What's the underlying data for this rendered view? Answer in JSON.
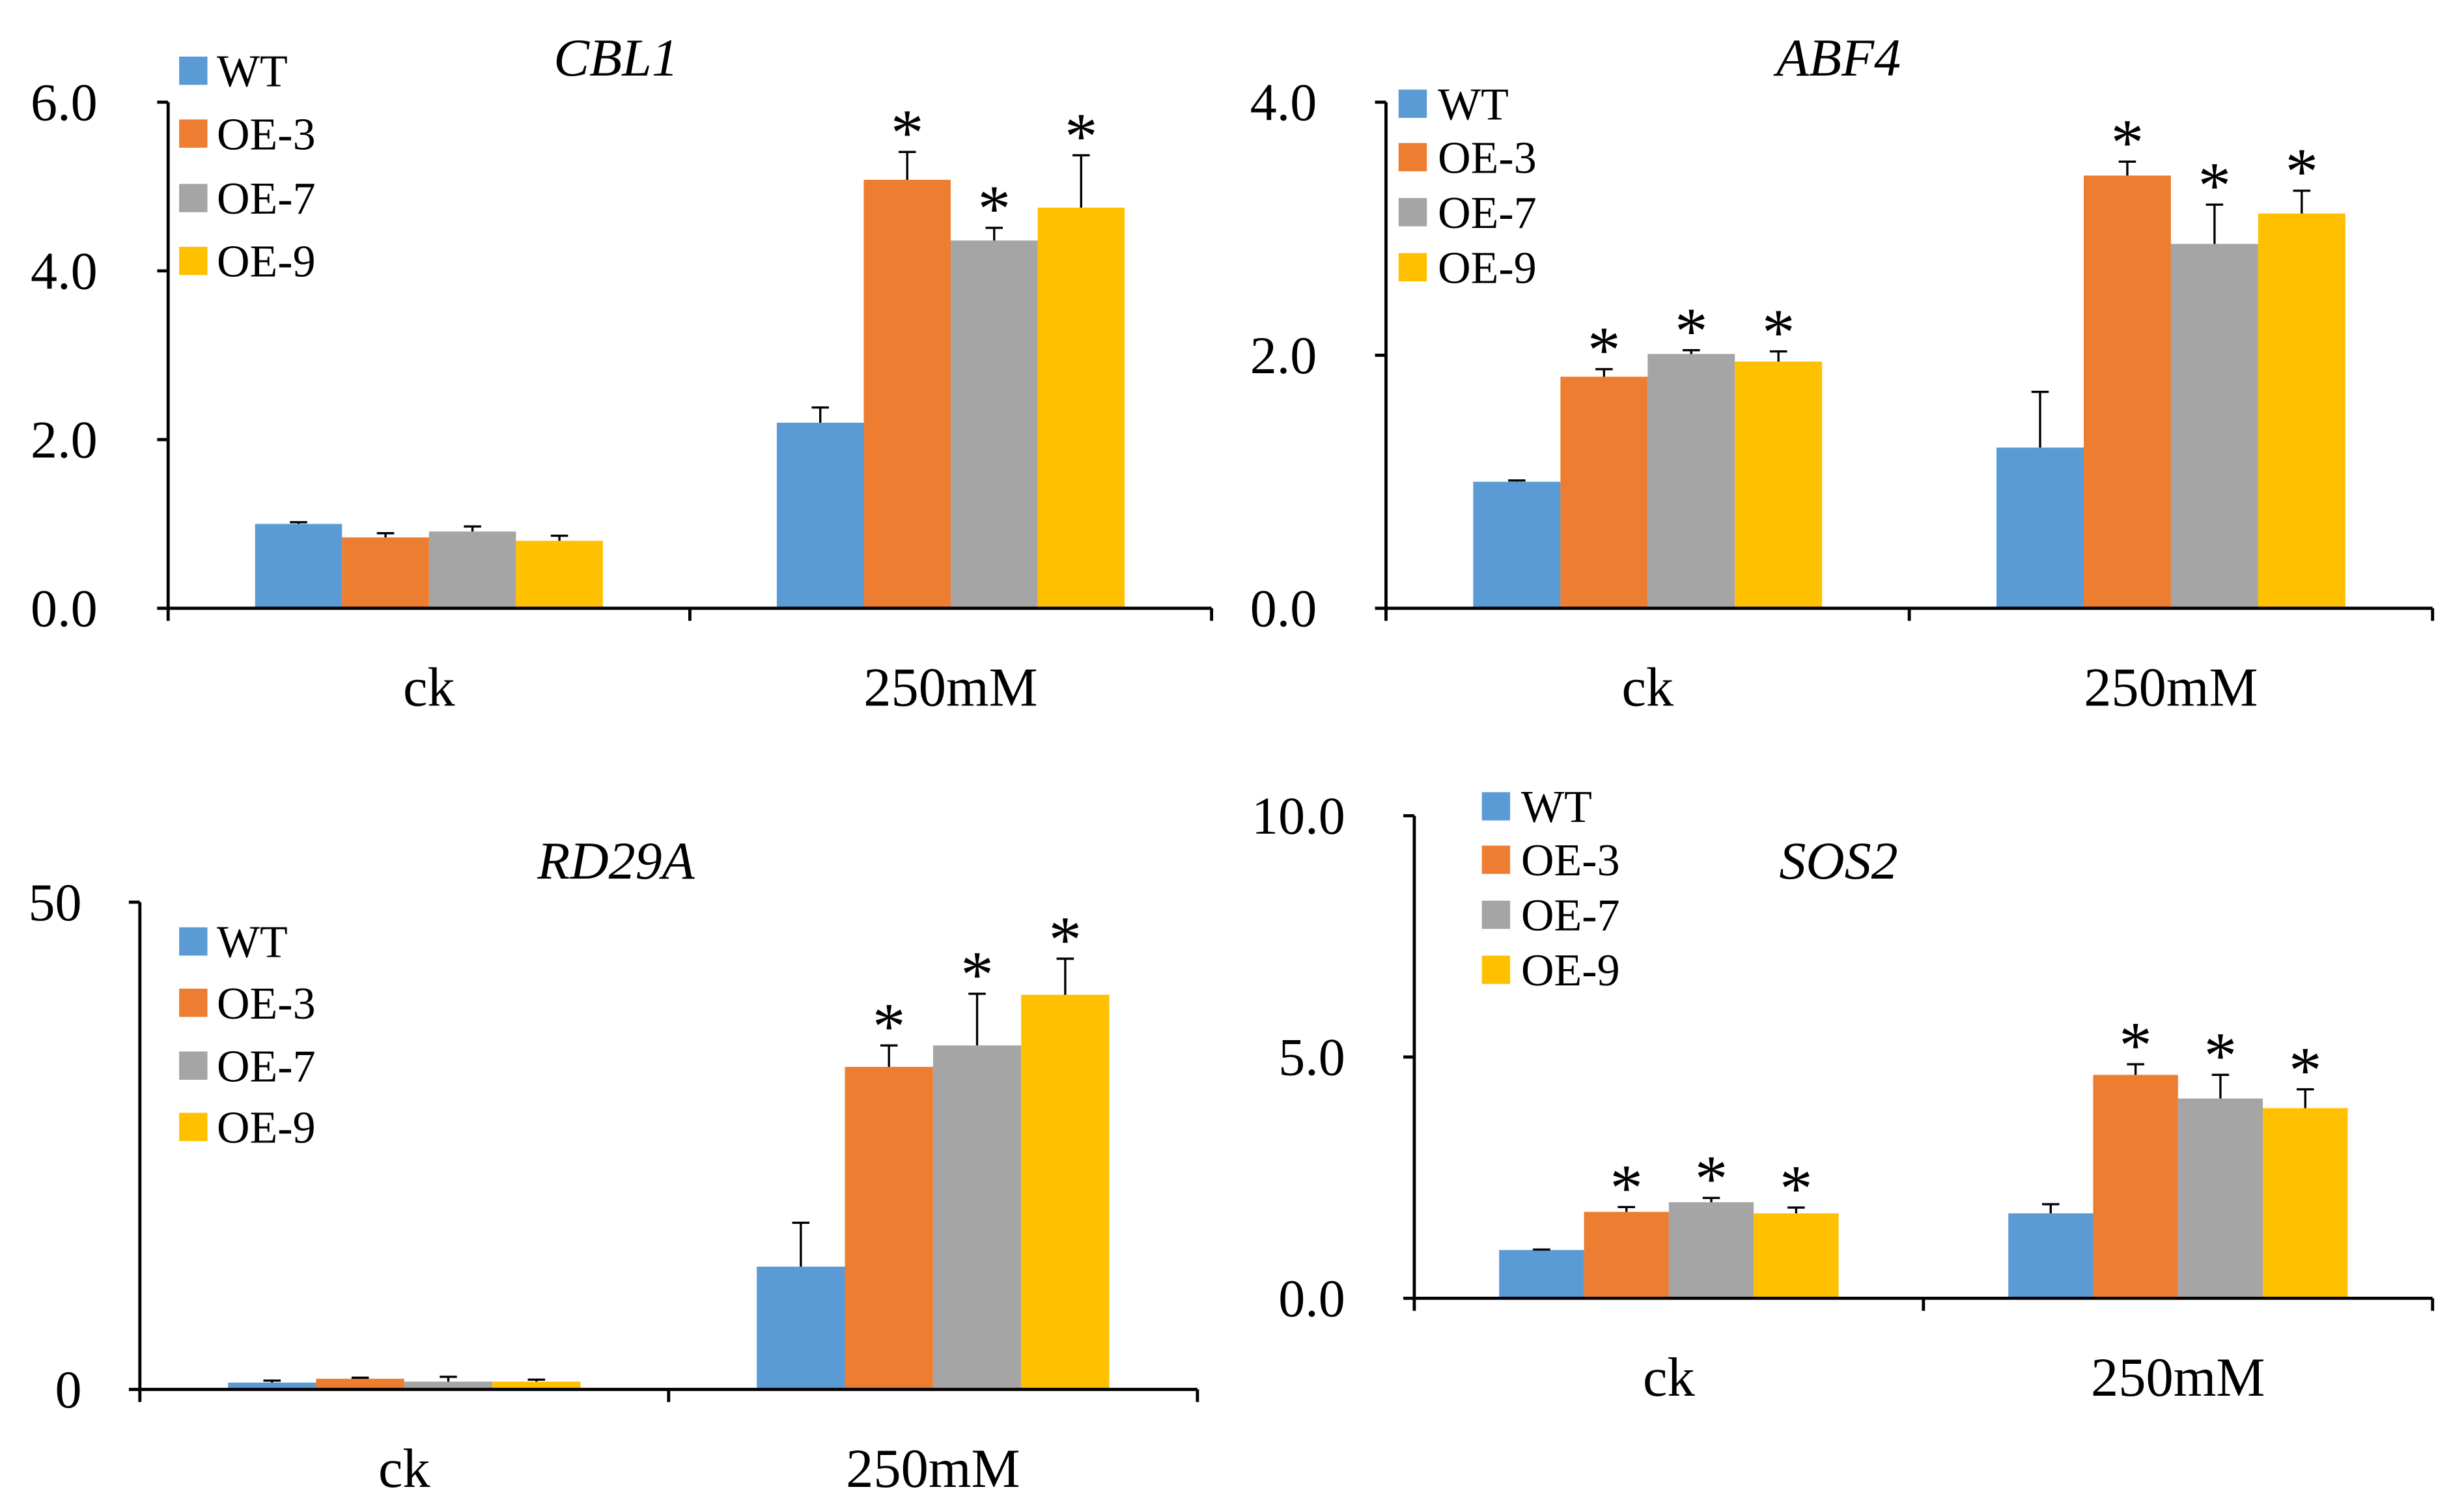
{
  "chart_data": [
    {
      "type": "bar",
      "title": "CBL1",
      "categories": [
        "ck",
        "250mM"
      ],
      "ylim": [
        0,
        6
      ],
      "yticks": [
        0,
        2,
        4,
        6
      ],
      "ytick_labels": [
        "0.0",
        "2.0",
        "4.0",
        "6.0"
      ],
      "legend": "top-left",
      "significance_marker": "*",
      "series": [
        {
          "name": "WT",
          "color": "#5B9BD5",
          "values": [
            1.0,
            2.2
          ],
          "errors": [
            0.02,
            0.18
          ],
          "significant": [
            false,
            false
          ]
        },
        {
          "name": "OE-3",
          "color": "#ED7D31",
          "values": [
            0.84,
            5.08
          ],
          "errors": [
            0.05,
            0.33
          ],
          "significant": [
            false,
            true
          ]
        },
        {
          "name": "OE-7",
          "color": "#A5A5A5",
          "values": [
            0.91,
            4.36
          ],
          "errors": [
            0.06,
            0.15
          ],
          "significant": [
            false,
            true
          ]
        },
        {
          "name": "OE-9",
          "color": "#FFC000",
          "values": [
            0.8,
            4.75
          ],
          "errors": [
            0.06,
            0.62
          ],
          "significant": [
            false,
            true
          ]
        }
      ]
    },
    {
      "type": "bar",
      "title": "ABF4",
      "categories": [
        "ck",
        "250mM"
      ],
      "ylim": [
        0,
        4
      ],
      "yticks": [
        0,
        2,
        4
      ],
      "ytick_labels": [
        "0.0",
        "2.0",
        "4.0"
      ],
      "legend": "top-left",
      "significance_marker": "*",
      "series": [
        {
          "name": "WT",
          "color": "#5B9BD5",
          "values": [
            1.0,
            1.27
          ],
          "errors": [
            0.01,
            0.44
          ],
          "significant": [
            false,
            false
          ]
        },
        {
          "name": "OE-3",
          "color": "#ED7D31",
          "values": [
            1.83,
            3.42
          ],
          "errors": [
            0.06,
            0.11
          ],
          "significant": [
            true,
            true
          ]
        },
        {
          "name": "OE-7",
          "color": "#A5A5A5",
          "values": [
            2.01,
            2.88
          ],
          "errors": [
            0.03,
            0.31
          ],
          "significant": [
            true,
            true
          ]
        },
        {
          "name": "OE-9",
          "color": "#FFC000",
          "values": [
            1.95,
            3.12
          ],
          "errors": [
            0.08,
            0.18
          ],
          "significant": [
            true,
            true
          ]
        }
      ]
    },
    {
      "type": "bar",
      "title": "RD29A",
      "categories": [
        "ck",
        "250mM"
      ],
      "ylim": [
        0,
        50
      ],
      "yticks": [
        0,
        50
      ],
      "ytick_labels": [
        "0",
        "50"
      ],
      "legend": "top-left",
      "significance_marker": "*",
      "series": [
        {
          "name": "WT",
          "color": "#5B9BD5",
          "values": [
            0.7,
            12.6
          ],
          "errors": [
            0.2,
            4.5
          ],
          "significant": [
            false,
            false
          ]
        },
        {
          "name": "OE-3",
          "color": "#ED7D31",
          "values": [
            1.1,
            33.1
          ],
          "errors": [
            0.1,
            2.2
          ],
          "significant": [
            false,
            true
          ]
        },
        {
          "name": "OE-7",
          "color": "#A5A5A5",
          "values": [
            0.8,
            35.3
          ],
          "errors": [
            0.5,
            5.3
          ],
          "significant": [
            false,
            true
          ]
        },
        {
          "name": "OE-9",
          "color": "#FFC000",
          "values": [
            0.8,
            40.5
          ],
          "errors": [
            0.2,
            3.7
          ],
          "significant": [
            false,
            true
          ]
        }
      ]
    },
    {
      "type": "bar",
      "title": "SOS2",
      "categories": [
        "ck",
        "250mM"
      ],
      "ylim": [
        0,
        10
      ],
      "yticks": [
        0,
        5,
        10
      ],
      "ytick_labels": [
        "0.0",
        "5.0",
        "10.0"
      ],
      "legend": "top-left",
      "significance_marker": "*",
      "series": [
        {
          "name": "WT",
          "color": "#5B9BD5",
          "values": [
            1.0,
            1.76
          ],
          "errors": [
            0.01,
            0.19
          ],
          "significant": [
            false,
            false
          ]
        },
        {
          "name": "OE-3",
          "color": "#ED7D31",
          "values": [
            1.79,
            4.63
          ],
          "errors": [
            0.1,
            0.22
          ],
          "significant": [
            true,
            true
          ]
        },
        {
          "name": "OE-7",
          "color": "#A5A5A5",
          "values": [
            1.99,
            4.14
          ],
          "errors": [
            0.09,
            0.49
          ],
          "significant": [
            true,
            true
          ]
        },
        {
          "name": "OE-9",
          "color": "#FFC000",
          "values": [
            1.76,
            3.94
          ],
          "errors": [
            0.12,
            0.39
          ],
          "significant": [
            true,
            true
          ]
        }
      ]
    }
  ]
}
